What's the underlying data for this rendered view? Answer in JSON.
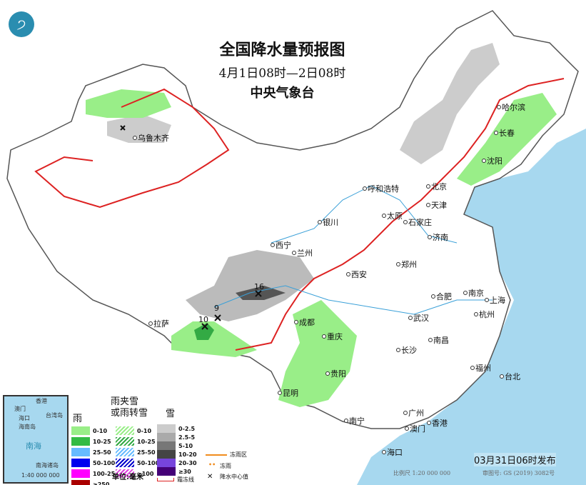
{
  "title": "全国降水量预报图",
  "period": "4月1日08时—2日08时",
  "issuer": "中央气象台",
  "cities": [
    "乌鲁木齐",
    "呼和浩特",
    "北京",
    "天津",
    "石家庄",
    "太原",
    "济南",
    "银川",
    "西宁",
    "兰州",
    "郑州",
    "西安",
    "合肥",
    "南京",
    "上海",
    "杭州",
    "武汉",
    "成都",
    "重庆",
    "拉萨",
    "南昌",
    "长沙",
    "福州",
    "台北",
    "贵阳",
    "昆明",
    "南宁",
    "广州",
    "澳门",
    "香港",
    "海口",
    "哈尔滨",
    "长春",
    "沈阳"
  ],
  "precip_centers": [
    "16",
    "9",
    "10"
  ],
  "inset": {
    "labels": [
      "香港",
      "澳门",
      "台湾岛",
      "海口",
      "海南岛",
      "南海",
      "南海诸岛"
    ],
    "scale": "1:40 000 000"
  },
  "legend": {
    "rain": {
      "title": "雨",
      "items": [
        {
          "label": "0-10",
          "color": "#99ee88"
        },
        {
          "label": "10-25",
          "color": "#33bb44"
        },
        {
          "label": "25-50",
          "color": "#66bbff"
        },
        {
          "label": "50-100",
          "color": "#0000ee"
        },
        {
          "label": "100-250",
          "color": "#ff00ff"
        },
        {
          "label": "≥250",
          "color": "#aa0000"
        }
      ]
    },
    "mixed": {
      "title": "雨夹雪\n或雨转雪",
      "items": [
        {
          "label": "0-10",
          "color": "#99ee88"
        },
        {
          "label": "10-25",
          "color": "#33aa44"
        },
        {
          "label": "25-50",
          "color": "#66bbff"
        },
        {
          "label": "50-100",
          "color": "#0000cc"
        },
        {
          "label": "≥100",
          "color": "#dd44dd"
        }
      ]
    },
    "snow": {
      "title": "雪",
      "items": [
        {
          "label": "0-2.5",
          "color": "#cccccc"
        },
        {
          "label": "2.5-5",
          "color": "#aaaaaa"
        },
        {
          "label": "5-10",
          "color": "#777777"
        },
        {
          "label": "10-20",
          "color": "#444444"
        },
        {
          "label": "20-30",
          "color": "#7744dd"
        },
        {
          "label": "≥30",
          "color": "#440077"
        }
      ]
    },
    "unit": "单位:毫米",
    "freezing_rain_area": "冻雨区",
    "freezing_rain": "冻雨",
    "freeze_line": "霜冻线",
    "precip_center": "降水中心值"
  },
  "issue_time": "03月31日06时发布",
  "scale": "比例尺 1:20 000 000",
  "approval": "审图号: GS (2019) 3082号",
  "colors": {
    "sea": "#a7d8ef",
    "land": "#ffffff",
    "border": "#555555",
    "freeze_line": "#dd2222",
    "river": "#3aa0d8"
  }
}
